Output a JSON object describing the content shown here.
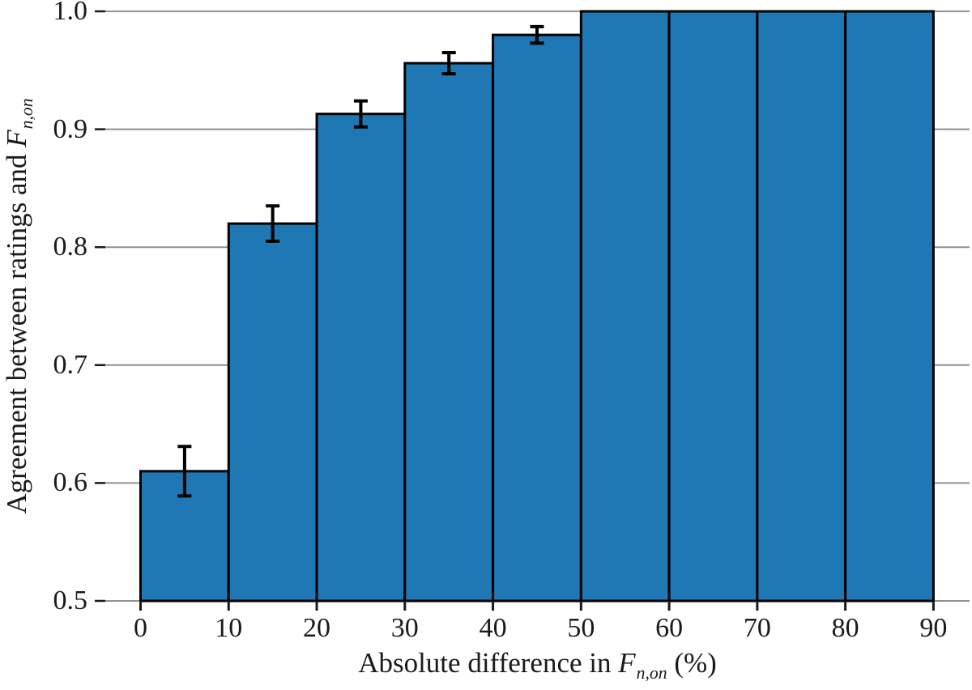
{
  "figure": {
    "background": "#ffffff"
  },
  "chart_data": {
    "type": "bar",
    "title": "",
    "bin_edges": [
      0,
      10,
      20,
      30,
      40,
      50,
      60,
      70,
      80,
      90
    ],
    "categories": [
      "0-10",
      "10-20",
      "20-30",
      "30-40",
      "40-50",
      "50-60",
      "60-70",
      "70-80",
      "80-90"
    ],
    "values": [
      0.61,
      0.82,
      0.913,
      0.956,
      0.98,
      1.0,
      1.0,
      1.0,
      1.0
    ],
    "errors": [
      0.021,
      0.015,
      0.011,
      0.009,
      0.007,
      0,
      0,
      0,
      0
    ],
    "xlabel": {
      "prefix": "Absolute difference in ",
      "math": "F",
      "sub": "n,on",
      "suffix": " (%)"
    },
    "ylabel": {
      "prefix": "Agreement between ratings and ",
      "math": "F",
      "sub": "n,on",
      "suffix": ""
    },
    "xticks": [
      0,
      10,
      20,
      30,
      40,
      50,
      60,
      70,
      80,
      90
    ],
    "xtick_labels": [
      "0",
      "10",
      "20",
      "30",
      "40",
      "50",
      "60",
      "70",
      "80",
      "90"
    ],
    "yticks": [
      0.5,
      0.6,
      0.7,
      0.8,
      0.9,
      1.0
    ],
    "ytick_labels": [
      "0.5",
      "0.6",
      "0.7",
      "0.8",
      "0.9",
      "1.0"
    ],
    "xlim": [
      -4.0,
      94.1
    ],
    "ylim": [
      0.5,
      1.0
    ],
    "grid": true,
    "legend": null,
    "colors": {
      "bar_fill": "#1f77b4",
      "bar_edge": "#000000",
      "grid": "#919191",
      "error_bar": "#000000",
      "tick": "#1a1a1a",
      "text": "#1a1a1a"
    }
  }
}
